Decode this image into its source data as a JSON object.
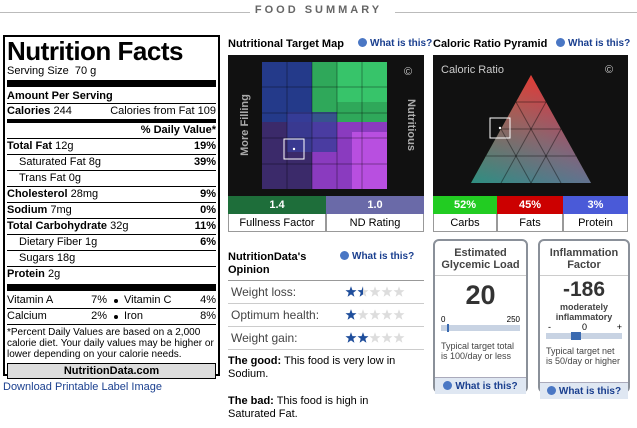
{
  "header": {
    "title": "FOOD SUMMARY"
  },
  "label": {
    "title": "Nutrition Facts",
    "serving": "Serving Size  70 g",
    "amount_per_serving": "Amount Per Serving",
    "calories": {
      "name": "Calories",
      "amount": "244",
      "from_fat_name": "Calories from Fat",
      "from_fat_amount": "109"
    },
    "dv_header": "% Daily Value*",
    "nutrients": [
      {
        "name": "Total Fat",
        "amount": "12g",
        "dv": "19%"
      },
      {
        "name": "Saturated Fat",
        "amount": "8g",
        "dv": "39%"
      },
      {
        "name": "Trans Fat",
        "amount": "0g"
      },
      {
        "name": "Cholesterol",
        "amount": "28mg",
        "dv": "9%"
      },
      {
        "name": "Sodium",
        "amount": "7mg",
        "dv": "0%"
      },
      {
        "name": "Total Carbohydrate",
        "amount": "32g",
        "dv": "11%"
      },
      {
        "name": "Dietary Fiber",
        "amount": "1g",
        "dv": "6%"
      },
      {
        "name": "Sugars",
        "amount": "18g"
      },
      {
        "name": "Protein",
        "amount": "2g"
      }
    ],
    "vitamins": [
      [
        "Vitamin A",
        "7%",
        "Vitamin C",
        "4%"
      ],
      [
        "Calcium",
        "2%",
        "Iron",
        "8%"
      ]
    ],
    "footnote": "*Percent Daily Values are based on a 2,000 calorie diet. Your daily values may be higher or lower depending on your calorie needs.",
    "site": "NutritionData.com"
  },
  "download_link": "Download Printable Label Image",
  "target_map": {
    "title": "Nutritional Target Map",
    "help": "What is this?",
    "left_label": "More Filling",
    "right_label": "Nutritious",
    "copyright": "©",
    "scores": [
      {
        "value": "1.4",
        "label": "Fullness Factor"
      },
      {
        "value": "1.0",
        "label": "ND Rating"
      }
    ]
  },
  "pyramid": {
    "title": "Caloric Ratio Pyramid",
    "help": "What is this?",
    "inner_title": "Caloric Ratio",
    "copyright": "©",
    "scores": [
      {
        "value": "52%",
        "label": "Carbs"
      },
      {
        "value": "45%",
        "label": "Fats"
      },
      {
        "value": "3%",
        "label": "Protein"
      }
    ]
  },
  "opinion": {
    "title": "NutritionData's Opinion",
    "help": "What is this?",
    "ratings": [
      {
        "label": "Weight loss:",
        "stars": 1.5
      },
      {
        "label": "Optimum health:",
        "stars": 1
      },
      {
        "label": "Weight gain:",
        "stars": 2
      }
    ],
    "max_stars": 5,
    "good_label": "The good:",
    "good_text": "This food is very low in Sodium.",
    "bad_label": "The bad:",
    "bad_text": "This food is high in Saturated Fat."
  },
  "glycemic": {
    "title": "Estimated Glycemic Load",
    "value": 20,
    "scale_min": 0,
    "scale_max": 250,
    "note": "Typical target total is 100/day or less",
    "help": "What is this?"
  },
  "inflammation": {
    "title": "Inflammation Factor",
    "value": "-186",
    "description": "moderately inflammatory",
    "scale": [
      "-",
      "0",
      "+"
    ],
    "note": "Typical target net is 50/day or higher",
    "help": "What is this?"
  }
}
